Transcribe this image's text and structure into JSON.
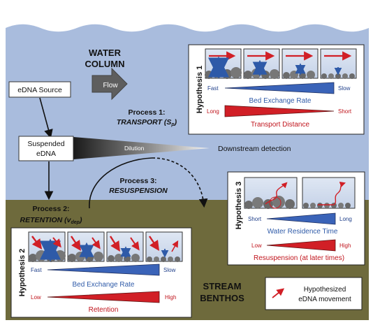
{
  "water_label": [
    "WATER",
    "COLUMN"
  ],
  "flow_label": "Flow",
  "edna_source": "eDNA Source",
  "suspended_edna": [
    "Suspended",
    "eDNA"
  ],
  "dilution": "Dilution",
  "downstream_detection": "Downstream detection",
  "process1": {
    "title": "Process 1:",
    "name": "TRANSPORT",
    "param": "(S",
    "param_sub": "p",
    "param_end": ")"
  },
  "process2": {
    "title": "Process 2:",
    "name": "RETENTION",
    "param": "(v",
    "param_sub": "dep",
    "param_end": ")"
  },
  "process3": {
    "title": "Process 3:",
    "name": "RESUSPENSION"
  },
  "hypothesis1": {
    "label": "Hypothesis 1",
    "bar1": {
      "left": "Fast",
      "right": "Slow",
      "caption": "Bed Exchange Rate",
      "color": "#3a63b8"
    },
    "bar2": {
      "left": "Long",
      "right": "Short",
      "caption": "Transport Distance",
      "color": "#d11f26"
    }
  },
  "hypothesis2": {
    "label": "Hypothesis 2",
    "bar1": {
      "left": "Fast",
      "right": "Slow",
      "caption": "Bed Exchange Rate",
      "color": "#3a63b8"
    },
    "bar2": {
      "left": "Low",
      "right": "High",
      "caption": "Retention",
      "color": "#d11f26"
    }
  },
  "hypothesis3": {
    "label": "Hypothesis 3",
    "bar1": {
      "left": "Short",
      "right": "Long",
      "caption": "Water Residence Time",
      "color": "#3a63b8"
    },
    "bar2": {
      "left": "Low",
      "right": "High",
      "caption": "Resuspension (at later times)",
      "color": "#d11f26"
    }
  },
  "benthos_label": [
    "STREAM",
    "BENTHOS"
  ],
  "legend": [
    "Hypothesized",
    "eDNA movement"
  ],
  "colors": {
    "water": "#a9bcdd",
    "sediment": "#6e6a3c",
    "blue": "#3a63b8",
    "red": "#d11f26"
  }
}
